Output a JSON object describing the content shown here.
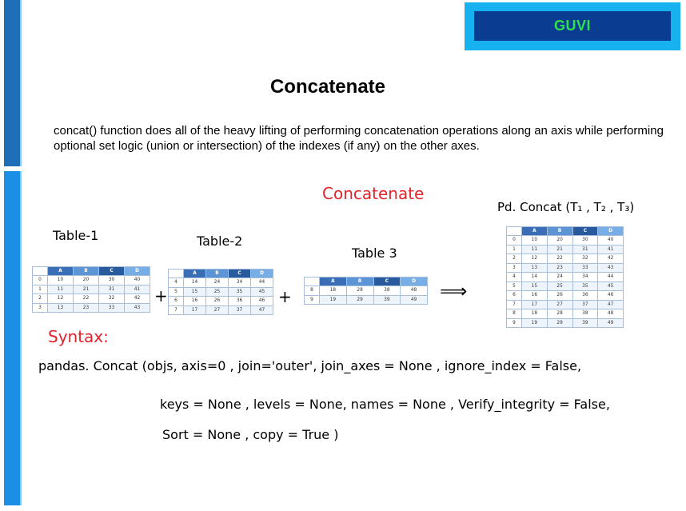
{
  "logo": {
    "text": "GUVI"
  },
  "title": "Concatenate",
  "description": "concat() function does all of the heavy lifting of performing concatenation operations along an axis while performing optional set logic (union or intersection) of the indexes (if any) on the other axes.",
  "handwritten": {
    "concatenate": "Concatenate",
    "table1": "Table-1",
    "table2": "Table-2",
    "table3": "Table 3",
    "pdconcat": "Pd. Concat (T₁ , T₂ , T₃)",
    "plus1": "+",
    "plus2": "+",
    "arrow": "⟹",
    "syntax_label": "Syntax:",
    "syntax_line1": "pandas. Concat (objs, axis=0 , join='outer', join_axes = None , ignore_index = False,",
    "syntax_line2": "keys = None , levels = None, names = None , Verify_integrity = False,",
    "syntax_line3": "Sort = None , copy = True )"
  },
  "colors": {
    "header_a": "#3a6fb8",
    "header_b": "#5b95d5",
    "header_c": "#2a5a9e",
    "header_d": "#78aee6",
    "logo_text": "#2ee04b",
    "handwriting_red": "#e3232b"
  },
  "tables": {
    "t1": {
      "columns": [
        "A",
        "B",
        "C",
        "D"
      ],
      "rows": [
        [
          "0",
          "10",
          "20",
          "30",
          "40"
        ],
        [
          "1",
          "11",
          "21",
          "31",
          "41"
        ],
        [
          "2",
          "12",
          "22",
          "32",
          "42"
        ],
        [
          "3",
          "13",
          "23",
          "33",
          "43"
        ]
      ]
    },
    "t2": {
      "columns": [
        "A",
        "B",
        "C",
        "D"
      ],
      "rows": [
        [
          "4",
          "14",
          "24",
          "34",
          "44"
        ],
        [
          "5",
          "15",
          "25",
          "35",
          "45"
        ],
        [
          "6",
          "16",
          "26",
          "36",
          "46"
        ],
        [
          "7",
          "17",
          "27",
          "37",
          "47"
        ]
      ]
    },
    "t3": {
      "columns": [
        "A",
        "B",
        "C",
        "D"
      ],
      "rows": [
        [
          "8",
          "18",
          "28",
          "38",
          "48"
        ],
        [
          "9",
          "19",
          "29",
          "39",
          "49"
        ]
      ]
    },
    "result": {
      "columns": [
        "A",
        "B",
        "C",
        "D"
      ],
      "rows": [
        [
          "0",
          "10",
          "20",
          "30",
          "40"
        ],
        [
          "1",
          "11",
          "21",
          "31",
          "41"
        ],
        [
          "2",
          "12",
          "22",
          "32",
          "42"
        ],
        [
          "3",
          "13",
          "23",
          "33",
          "43"
        ],
        [
          "4",
          "14",
          "24",
          "34",
          "44"
        ],
        [
          "5",
          "15",
          "25",
          "35",
          "45"
        ],
        [
          "6",
          "16",
          "26",
          "36",
          "46"
        ],
        [
          "7",
          "17",
          "27",
          "37",
          "47"
        ],
        [
          "8",
          "18",
          "28",
          "38",
          "48"
        ],
        [
          "9",
          "19",
          "29",
          "39",
          "49"
        ]
      ]
    }
  }
}
